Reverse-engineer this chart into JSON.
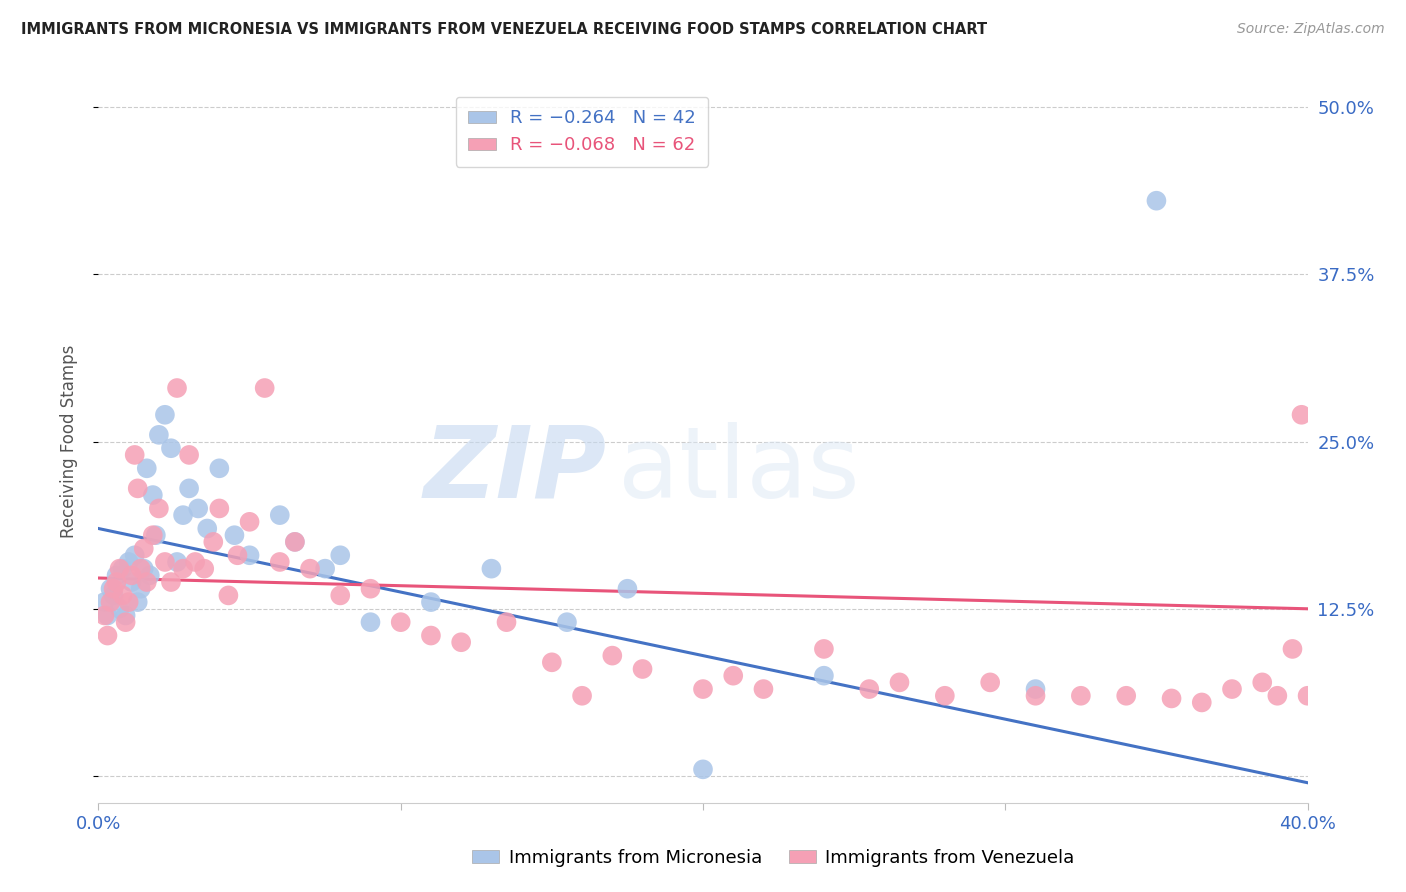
{
  "title": "IMMIGRANTS FROM MICRONESIA VS IMMIGRANTS FROM VENEZUELA RECEIVING FOOD STAMPS CORRELATION CHART",
  "source": "Source: ZipAtlas.com",
  "ylabel": "Receiving Food Stamps",
  "watermark_zip": "ZIP",
  "watermark_atlas": "atlas",
  "xlim": [
    0.0,
    0.4
  ],
  "ylim": [
    -0.02,
    0.52
  ],
  "color_micronesia": "#aac5e8",
  "color_venezuela": "#f5a0b5",
  "color_line_micronesia": "#4472c4",
  "color_line_venezuela": "#e8547a",
  "legend1_label": "R = −0.264   N = 42",
  "legend2_label": "R = −0.068   N = 62",
  "mic_line_x0": 0.0,
  "mic_line_y0": 0.185,
  "mic_line_x1": 0.4,
  "mic_line_y1": -0.005,
  "ven_line_x0": 0.0,
  "ven_line_y0": 0.148,
  "ven_line_x1": 0.4,
  "ven_line_y1": 0.125,
  "micronesia_x": [
    0.002,
    0.003,
    0.004,
    0.005,
    0.006,
    0.007,
    0.008,
    0.009,
    0.01,
    0.011,
    0.012,
    0.013,
    0.014,
    0.015,
    0.016,
    0.017,
    0.018,
    0.019,
    0.02,
    0.022,
    0.024,
    0.026,
    0.028,
    0.03,
    0.033,
    0.036,
    0.04,
    0.045,
    0.05,
    0.06,
    0.065,
    0.075,
    0.08,
    0.09,
    0.11,
    0.13,
    0.155,
    0.175,
    0.2,
    0.24,
    0.31,
    0.35
  ],
  "micronesia_y": [
    0.13,
    0.12,
    0.14,
    0.135,
    0.15,
    0.125,
    0.155,
    0.12,
    0.16,
    0.145,
    0.165,
    0.13,
    0.14,
    0.155,
    0.23,
    0.15,
    0.21,
    0.18,
    0.255,
    0.27,
    0.245,
    0.16,
    0.195,
    0.215,
    0.2,
    0.185,
    0.23,
    0.18,
    0.165,
    0.195,
    0.175,
    0.155,
    0.165,
    0.115,
    0.13,
    0.155,
    0.115,
    0.14,
    0.005,
    0.075,
    0.065,
    0.43
  ],
  "venezuela_x": [
    0.002,
    0.003,
    0.004,
    0.005,
    0.006,
    0.007,
    0.008,
    0.009,
    0.01,
    0.011,
    0.012,
    0.013,
    0.014,
    0.015,
    0.016,
    0.018,
    0.02,
    0.022,
    0.024,
    0.026,
    0.028,
    0.03,
    0.032,
    0.035,
    0.038,
    0.04,
    0.043,
    0.046,
    0.05,
    0.055,
    0.06,
    0.065,
    0.07,
    0.08,
    0.09,
    0.1,
    0.11,
    0.12,
    0.135,
    0.15,
    0.16,
    0.17,
    0.18,
    0.2,
    0.21,
    0.22,
    0.24,
    0.255,
    0.265,
    0.28,
    0.295,
    0.31,
    0.325,
    0.34,
    0.355,
    0.365,
    0.375,
    0.385,
    0.39,
    0.395,
    0.398,
    0.4
  ],
  "venezuela_y": [
    0.12,
    0.105,
    0.13,
    0.14,
    0.145,
    0.155,
    0.135,
    0.115,
    0.13,
    0.15,
    0.24,
    0.215,
    0.155,
    0.17,
    0.145,
    0.18,
    0.2,
    0.16,
    0.145,
    0.29,
    0.155,
    0.24,
    0.16,
    0.155,
    0.175,
    0.2,
    0.135,
    0.165,
    0.19,
    0.29,
    0.16,
    0.175,
    0.155,
    0.135,
    0.14,
    0.115,
    0.105,
    0.1,
    0.115,
    0.085,
    0.06,
    0.09,
    0.08,
    0.065,
    0.075,
    0.065,
    0.095,
    0.065,
    0.07,
    0.06,
    0.07,
    0.06,
    0.06,
    0.06,
    0.058,
    0.055,
    0.065,
    0.07,
    0.06,
    0.095,
    0.27,
    0.06
  ]
}
